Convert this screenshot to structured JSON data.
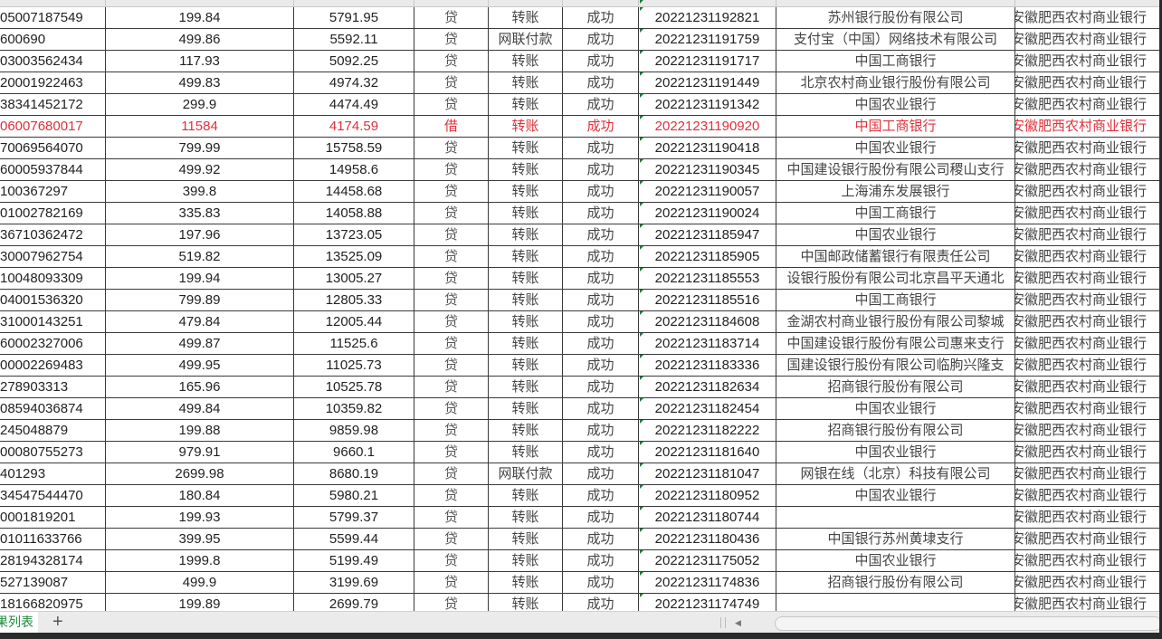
{
  "colors": {
    "accent": "#1e8a3c",
    "highlight_row": "#e0303a"
  },
  "rows": [
    {
      "account": "05007187549",
      "amount": "199.84",
      "balance": "5791.95",
      "direction": "贷",
      "method": "转账",
      "status": "成功",
      "time": "20221231192821",
      "counterparty_bank": "苏州银行股份有限公司",
      "bank": "安徽肥西农村商业银行"
    },
    {
      "account": "600690",
      "amount": "499.86",
      "balance": "5592.11",
      "direction": "贷",
      "method": "网联付款",
      "status": "成功",
      "time": "20221231191759",
      "counterparty_bank": "支付宝（中国）网络技术有限公司",
      "bank": "安徽肥西农村商业银行"
    },
    {
      "account": "03003562434",
      "amount": "117.93",
      "balance": "5092.25",
      "direction": "贷",
      "method": "转账",
      "status": "成功",
      "time": "20221231191717",
      "counterparty_bank": "中国工商银行",
      "bank": "安徽肥西农村商业银行"
    },
    {
      "account": "20001922463",
      "amount": "499.83",
      "balance": "4974.32",
      "direction": "贷",
      "method": "转账",
      "status": "成功",
      "time": "20221231191449",
      "counterparty_bank": "北京农村商业银行股份有限公司",
      "bank": "安徽肥西农村商业银行"
    },
    {
      "account": "38341452172",
      "amount": "299.9",
      "balance": "4474.49",
      "direction": "贷",
      "method": "转账",
      "status": "成功",
      "time": "20221231191342",
      "counterparty_bank": "中国农业银行",
      "bank": "安徽肥西农村商业银行"
    },
    {
      "account": "06007680017",
      "amount": "11584",
      "balance": "4174.59",
      "direction": "借",
      "method": "转账",
      "status": "成功",
      "time": "20221231190920",
      "counterparty_bank": "中国工商银行",
      "bank": "安徽肥西农村商业银行",
      "highlight": true
    },
    {
      "account": "70069564070",
      "amount": "799.99",
      "balance": "15758.59",
      "direction": "贷",
      "method": "转账",
      "status": "成功",
      "time": "20221231190418",
      "counterparty_bank": "中国农业银行",
      "bank": "安徽肥西农村商业银行"
    },
    {
      "account": "60005937844",
      "amount": "499.92",
      "balance": "14958.6",
      "direction": "贷",
      "method": "转账",
      "status": "成功",
      "time": "20221231190345",
      "counterparty_bank": "中国建设银行股份有限公司稷山支行",
      "bank": "安徽肥西农村商业银行"
    },
    {
      "account": "100367297",
      "amount": "399.8",
      "balance": "14458.68",
      "direction": "贷",
      "method": "转账",
      "status": "成功",
      "time": "20221231190057",
      "counterparty_bank": "上海浦东发展银行",
      "bank": "安徽肥西农村商业银行"
    },
    {
      "account": "01002782169",
      "amount": "335.83",
      "balance": "14058.88",
      "direction": "贷",
      "method": "转账",
      "status": "成功",
      "time": "20221231190024",
      "counterparty_bank": "中国工商银行",
      "bank": "安徽肥西农村商业银行"
    },
    {
      "account": "36710362472",
      "amount": "197.96",
      "balance": "13723.05",
      "direction": "贷",
      "method": "转账",
      "status": "成功",
      "time": "20221231185947",
      "counterparty_bank": "中国农业银行",
      "bank": "安徽肥西农村商业银行"
    },
    {
      "account": "30007962754",
      "amount": "519.82",
      "balance": "13525.09",
      "direction": "贷",
      "method": "转账",
      "status": "成功",
      "time": "20221231185905",
      "counterparty_bank": "中国邮政储蓄银行有限责任公司",
      "bank": "安徽肥西农村商业银行"
    },
    {
      "account": "10048093309",
      "amount": "199.94",
      "balance": "13005.27",
      "direction": "贷",
      "method": "转账",
      "status": "成功",
      "time": "20221231185553",
      "counterparty_bank": "设银行股份有限公司北京昌平天通北",
      "bank": "安徽肥西农村商业银行"
    },
    {
      "account": "04001536320",
      "amount": "799.89",
      "balance": "12805.33",
      "direction": "贷",
      "method": "转账",
      "status": "成功",
      "time": "20221231185516",
      "counterparty_bank": "中国工商银行",
      "bank": "安徽肥西农村商业银行"
    },
    {
      "account": "31000143251",
      "amount": "479.84",
      "balance": "12005.44",
      "direction": "贷",
      "method": "转账",
      "status": "成功",
      "time": "20221231184608",
      "counterparty_bank": "金湖农村商业银行股份有限公司黎城",
      "bank": "安徽肥西农村商业银行"
    },
    {
      "account": "60002327006",
      "amount": "499.87",
      "balance": "11525.6",
      "direction": "贷",
      "method": "转账",
      "status": "成功",
      "time": "20221231183714",
      "counterparty_bank": "中国建设银行股份有限公司惠来支行",
      "bank": "安徽肥西农村商业银行"
    },
    {
      "account": "00002269483",
      "amount": "499.95",
      "balance": "11025.73",
      "direction": "贷",
      "method": "转账",
      "status": "成功",
      "time": "20221231183336",
      "counterparty_bank": "国建设银行股份有限公司临朐兴隆支",
      "bank": "安徽肥西农村商业银行"
    },
    {
      "account": "278903313",
      "amount": "165.96",
      "balance": "10525.78",
      "direction": "贷",
      "method": "转账",
      "status": "成功",
      "time": "20221231182634",
      "counterparty_bank": "招商银行股份有限公司",
      "bank": "安徽肥西农村商业银行"
    },
    {
      "account": "08594036874",
      "amount": "499.84",
      "balance": "10359.82",
      "direction": "贷",
      "method": "转账",
      "status": "成功",
      "time": "20221231182454",
      "counterparty_bank": "中国农业银行",
      "bank": "安徽肥西农村商业银行"
    },
    {
      "account": "245048879",
      "amount": "199.88",
      "balance": "9859.98",
      "direction": "贷",
      "method": "转账",
      "status": "成功",
      "time": "20221231182222",
      "counterparty_bank": "招商银行股份有限公司",
      "bank": "安徽肥西农村商业银行"
    },
    {
      "account": "00080755273",
      "amount": "979.91",
      "balance": "9660.1",
      "direction": "贷",
      "method": "转账",
      "status": "成功",
      "time": "20221231181640",
      "counterparty_bank": "中国农业银行",
      "bank": "安徽肥西农村商业银行"
    },
    {
      "account": "401293",
      "amount": "2699.98",
      "balance": "8680.19",
      "direction": "贷",
      "method": "网联付款",
      "status": "成功",
      "time": "20221231181047",
      "counterparty_bank": "网银在线（北京）科技有限公司",
      "bank": "安徽肥西农村商业银行"
    },
    {
      "account": "34547544470",
      "amount": "180.84",
      "balance": "5980.21",
      "direction": "贷",
      "method": "转账",
      "status": "成功",
      "time": "20221231180952",
      "counterparty_bank": "中国农业银行",
      "bank": "安徽肥西农村商业银行"
    },
    {
      "account": "0001819201",
      "amount": "199.93",
      "balance": "5799.37",
      "direction": "贷",
      "method": "转账",
      "status": "成功",
      "time": "20221231180744",
      "counterparty_bank": "",
      "bank": "安徽肥西农村商业银行"
    },
    {
      "account": "01011633766",
      "amount": "399.95",
      "balance": "5599.44",
      "direction": "贷",
      "method": "转账",
      "status": "成功",
      "time": "20221231180436",
      "counterparty_bank": "中国银行苏州黄埭支行",
      "bank": "安徽肥西农村商业银行"
    },
    {
      "account": "28194328174",
      "amount": "1999.8",
      "balance": "5199.49",
      "direction": "贷",
      "method": "转账",
      "status": "成功",
      "time": "20221231175052",
      "counterparty_bank": "中国农业银行",
      "bank": "安徽肥西农村商业银行"
    },
    {
      "account": "527139087",
      "amount": "499.9",
      "balance": "3199.69",
      "direction": "贷",
      "method": "转账",
      "status": "成功",
      "time": "20221231174836",
      "counterparty_bank": "招商银行股份有限公司",
      "bank": "安徽肥西农村商业银行"
    },
    {
      "account": "18166820975",
      "amount": "199.89",
      "balance": "2699.79",
      "direction": "贷",
      "method": "转账",
      "status": "成功",
      "time": "20221231174749",
      "counterparty_bank": "",
      "bank": "安徽肥西农村商业银行"
    }
  ],
  "sheet_tabs": {
    "active_label": "果列表",
    "add_icon": "plus-icon"
  }
}
